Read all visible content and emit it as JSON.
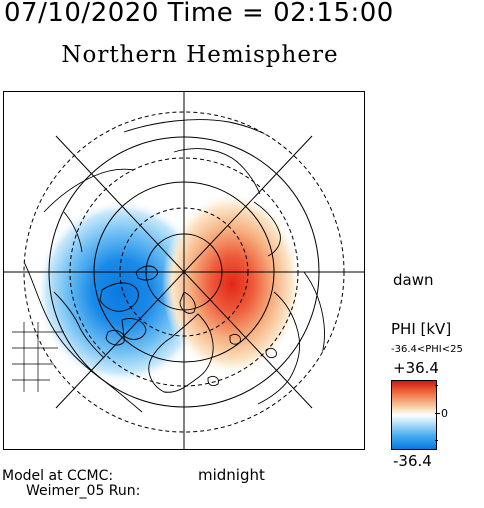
{
  "header": {
    "timestamp": "07/10/2020 Time = 02:15:00",
    "hemisphere": "Northern Hemisphere"
  },
  "map": {
    "orientation_labels": {
      "dawn": "dawn",
      "midnight": "midnight"
    },
    "potential_cells": [
      {
        "sign": "negative",
        "color": "#0a78e0",
        "location": "dusk side (left of midnight meridian)"
      },
      {
        "sign": "positive",
        "color": "#e03020",
        "location": "dawn side (right of midnight meridian)"
      }
    ]
  },
  "legend": {
    "title": "PHI [kV]",
    "range_text": "-36.4<PHI<25",
    "max_label": "+36.4",
    "zero_label": "0",
    "min_label": "-36.4",
    "colors": {
      "max": "#d01818",
      "zero": "#ffffff",
      "min": "#0a78e0"
    }
  },
  "footer": {
    "line1": "Model at CCMC:",
    "line2": "Weimer_05 Run:"
  }
}
